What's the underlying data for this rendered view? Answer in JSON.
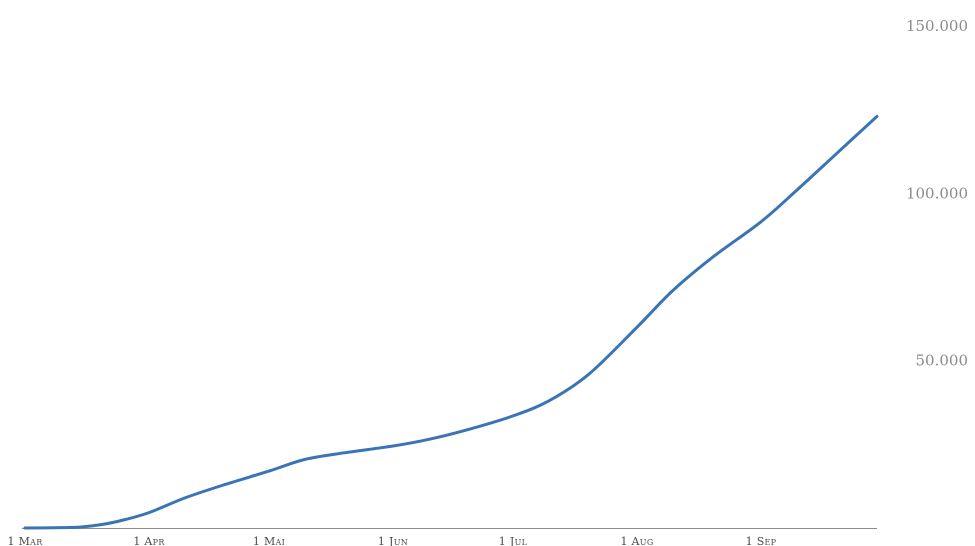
{
  "chart_data": {
    "type": "line",
    "title": "",
    "xlabel": "",
    "ylabel": "",
    "x_ticks": [
      "1 Mar",
      "1 Apr",
      "1 Mai",
      "1 Jun",
      "1 Jul",
      "1 Aug",
      "1 Sep"
    ],
    "y_ticks": [
      "150.000",
      "100.000",
      "50.000"
    ],
    "ylim": [
      0,
      150000
    ],
    "grid": false,
    "legend": "none",
    "color": "#3a74b5",
    "series": [
      {
        "x": [
          "2020-03-01",
          "2020-03-10",
          "2020-03-15",
          "2020-03-20",
          "2020-03-25",
          "2020-04-01",
          "2020-04-10",
          "2020-04-20",
          "2020-05-01",
          "2020-05-10",
          "2020-05-20",
          "2020-06-01",
          "2020-06-10",
          "2020-06-20",
          "2020-07-01",
          "2020-07-10",
          "2020-07-20",
          "2020-08-01",
          "2020-08-10",
          "2020-08-20",
          "2020-09-01",
          "2020-09-10",
          "2020-09-20",
          "2020-09-30"
        ],
        "y": [
          0,
          100,
          300,
          1000,
          2200,
          4600,
          9000,
          13000,
          17000,
          20500,
          22500,
          24500,
          26500,
          29500,
          33500,
          38000,
          46000,
          60000,
          71000,
          81000,
          91500,
          101000,
          112000,
          123000
        ]
      }
    ]
  }
}
